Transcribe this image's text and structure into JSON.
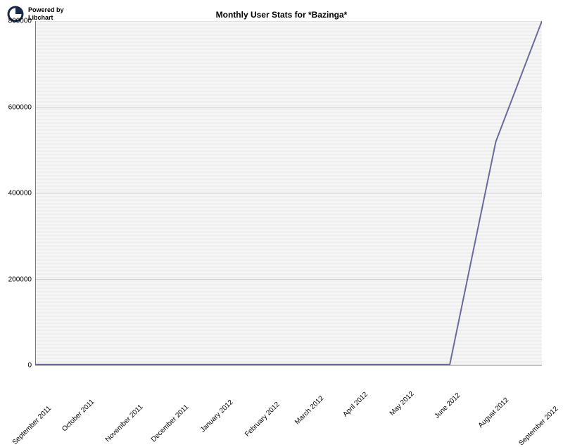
{
  "logo": {
    "powered_by": "Powered by",
    "libchart": "Libchart"
  },
  "chart": {
    "type": "line",
    "title": "Monthly User Stats for *Bazinga*",
    "title_fontsize": 12,
    "background_color": "#ffffff",
    "plot_bg_color": "#f5f5f5",
    "grid_color": "#e8e8e8",
    "grid_line_spacing": 5,
    "axis_color": "#000000",
    "line_color": "#6a6a9e",
    "line_width": 2,
    "xlim_categories": 13,
    "ylim": [
      0,
      800000
    ],
    "ytick_step": 200000,
    "yticks": [
      {
        "value": 0,
        "label": "0"
      },
      {
        "value": 200000,
        "label": "200000"
      },
      {
        "value": 400000,
        "label": "400000"
      },
      {
        "value": 600000,
        "label": "600000"
      },
      {
        "value": 800000,
        "label": "800000"
      }
    ],
    "categories": [
      "September 2011",
      "October 2011",
      "November 2011",
      "December 2011",
      "January 2012",
      "February 2012",
      "March 2012",
      "April 2012",
      "May 2012",
      "June 2012",
      "August 2012",
      "September 2012"
    ],
    "values": [
      2000,
      2000,
      2000,
      2000,
      2000,
      2000,
      2000,
      2000,
      2000,
      2000,
      520000,
      800000
    ],
    "x_label_rotation": -45,
    "label_fontsize": 10
  }
}
